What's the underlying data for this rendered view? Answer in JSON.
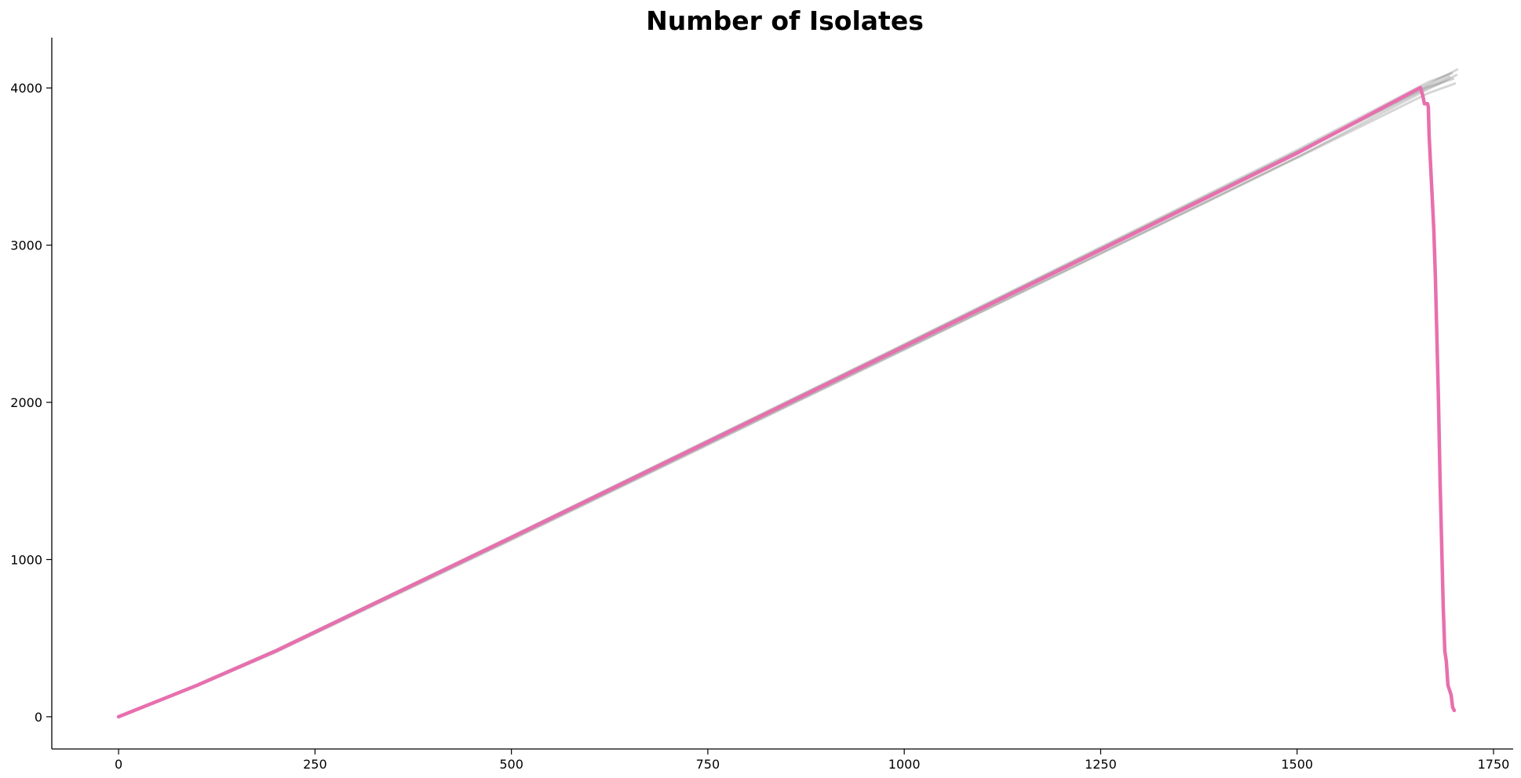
{
  "chart_data": {
    "type": "line",
    "title": "Number of Isolates",
    "xlabel": "",
    "ylabel": "",
    "xlim": [
      -85,
      1775
    ],
    "ylim": [
      -205,
      4320
    ],
    "grid": false,
    "legend": "none",
    "x_ticks": [
      0,
      250,
      500,
      750,
      1000,
      1250,
      1500,
      1750
    ],
    "y_ticks": [
      0,
      1000,
      2000,
      3000,
      4000
    ],
    "simulation_color": "#000000",
    "highlight_color": "#e86fae",
    "series": [
      {
        "role": "simulation",
        "points": [
          [
            0,
            0
          ],
          [
            100,
            205
          ],
          [
            200,
            425
          ],
          [
            500,
            1145
          ],
          [
            1000,
            2365
          ],
          [
            1500,
            3595
          ],
          [
            1662,
            4010
          ],
          [
            1705,
            4120
          ]
        ]
      },
      {
        "role": "simulation",
        "points": [
          [
            0,
            0
          ],
          [
            100,
            198
          ],
          [
            200,
            415
          ],
          [
            500,
            1130
          ],
          [
            1000,
            2340
          ],
          [
            1500,
            3560
          ],
          [
            1664,
            3985
          ],
          [
            1704,
            4085
          ]
        ]
      },
      {
        "role": "simulation",
        "points": [
          [
            0,
            0
          ],
          [
            100,
            200
          ],
          [
            200,
            418
          ],
          [
            500,
            1140
          ],
          [
            1000,
            2355
          ],
          [
            1500,
            3585
          ],
          [
            1665,
            4000
          ],
          [
            1700,
            4060
          ]
        ]
      },
      {
        "role": "simulation",
        "points": [
          [
            0,
            0
          ],
          [
            100,
            196
          ],
          [
            200,
            410
          ],
          [
            500,
            1125
          ],
          [
            1000,
            2335
          ],
          [
            1500,
            3555
          ],
          [
            1666,
            3965
          ],
          [
            1702,
            4030
          ]
        ]
      },
      {
        "role": "simulation",
        "points": [
          [
            0,
            0
          ],
          [
            100,
            203
          ],
          [
            200,
            422
          ],
          [
            500,
            1148
          ],
          [
            1000,
            2370
          ],
          [
            1500,
            3605
          ],
          [
            1668,
            4040
          ],
          [
            1698,
            4095
          ]
        ]
      },
      {
        "role": "simulation",
        "points": [
          [
            0,
            0
          ],
          [
            100,
            201
          ],
          [
            200,
            420
          ],
          [
            500,
            1143
          ],
          [
            1000,
            2360
          ],
          [
            1500,
            3590
          ],
          [
            1660,
            3995
          ],
          [
            1695,
            4075
          ]
        ]
      },
      {
        "role": "highlighted",
        "points": [
          [
            0,
            0
          ],
          [
            100,
            200
          ],
          [
            200,
            418
          ],
          [
            500,
            1140
          ],
          [
            1000,
            2355
          ],
          [
            1500,
            3585
          ],
          [
            1657,
            4002
          ],
          [
            1660,
            3950
          ],
          [
            1662,
            3900
          ],
          [
            1666,
            3900
          ],
          [
            1667,
            3880
          ],
          [
            1668,
            3700
          ],
          [
            1670,
            3500
          ],
          [
            1672,
            3300
          ],
          [
            1674,
            3100
          ],
          [
            1676,
            2800
          ],
          [
            1678,
            2400
          ],
          [
            1680,
            2000
          ],
          [
            1682,
            1500
          ],
          [
            1684,
            1100
          ],
          [
            1686,
            700
          ],
          [
            1688,
            420
          ],
          [
            1690,
            350
          ],
          [
            1692,
            200
          ],
          [
            1694,
            170
          ],
          [
            1696,
            140
          ],
          [
            1698,
            60
          ],
          [
            1700,
            40
          ]
        ]
      }
    ]
  }
}
